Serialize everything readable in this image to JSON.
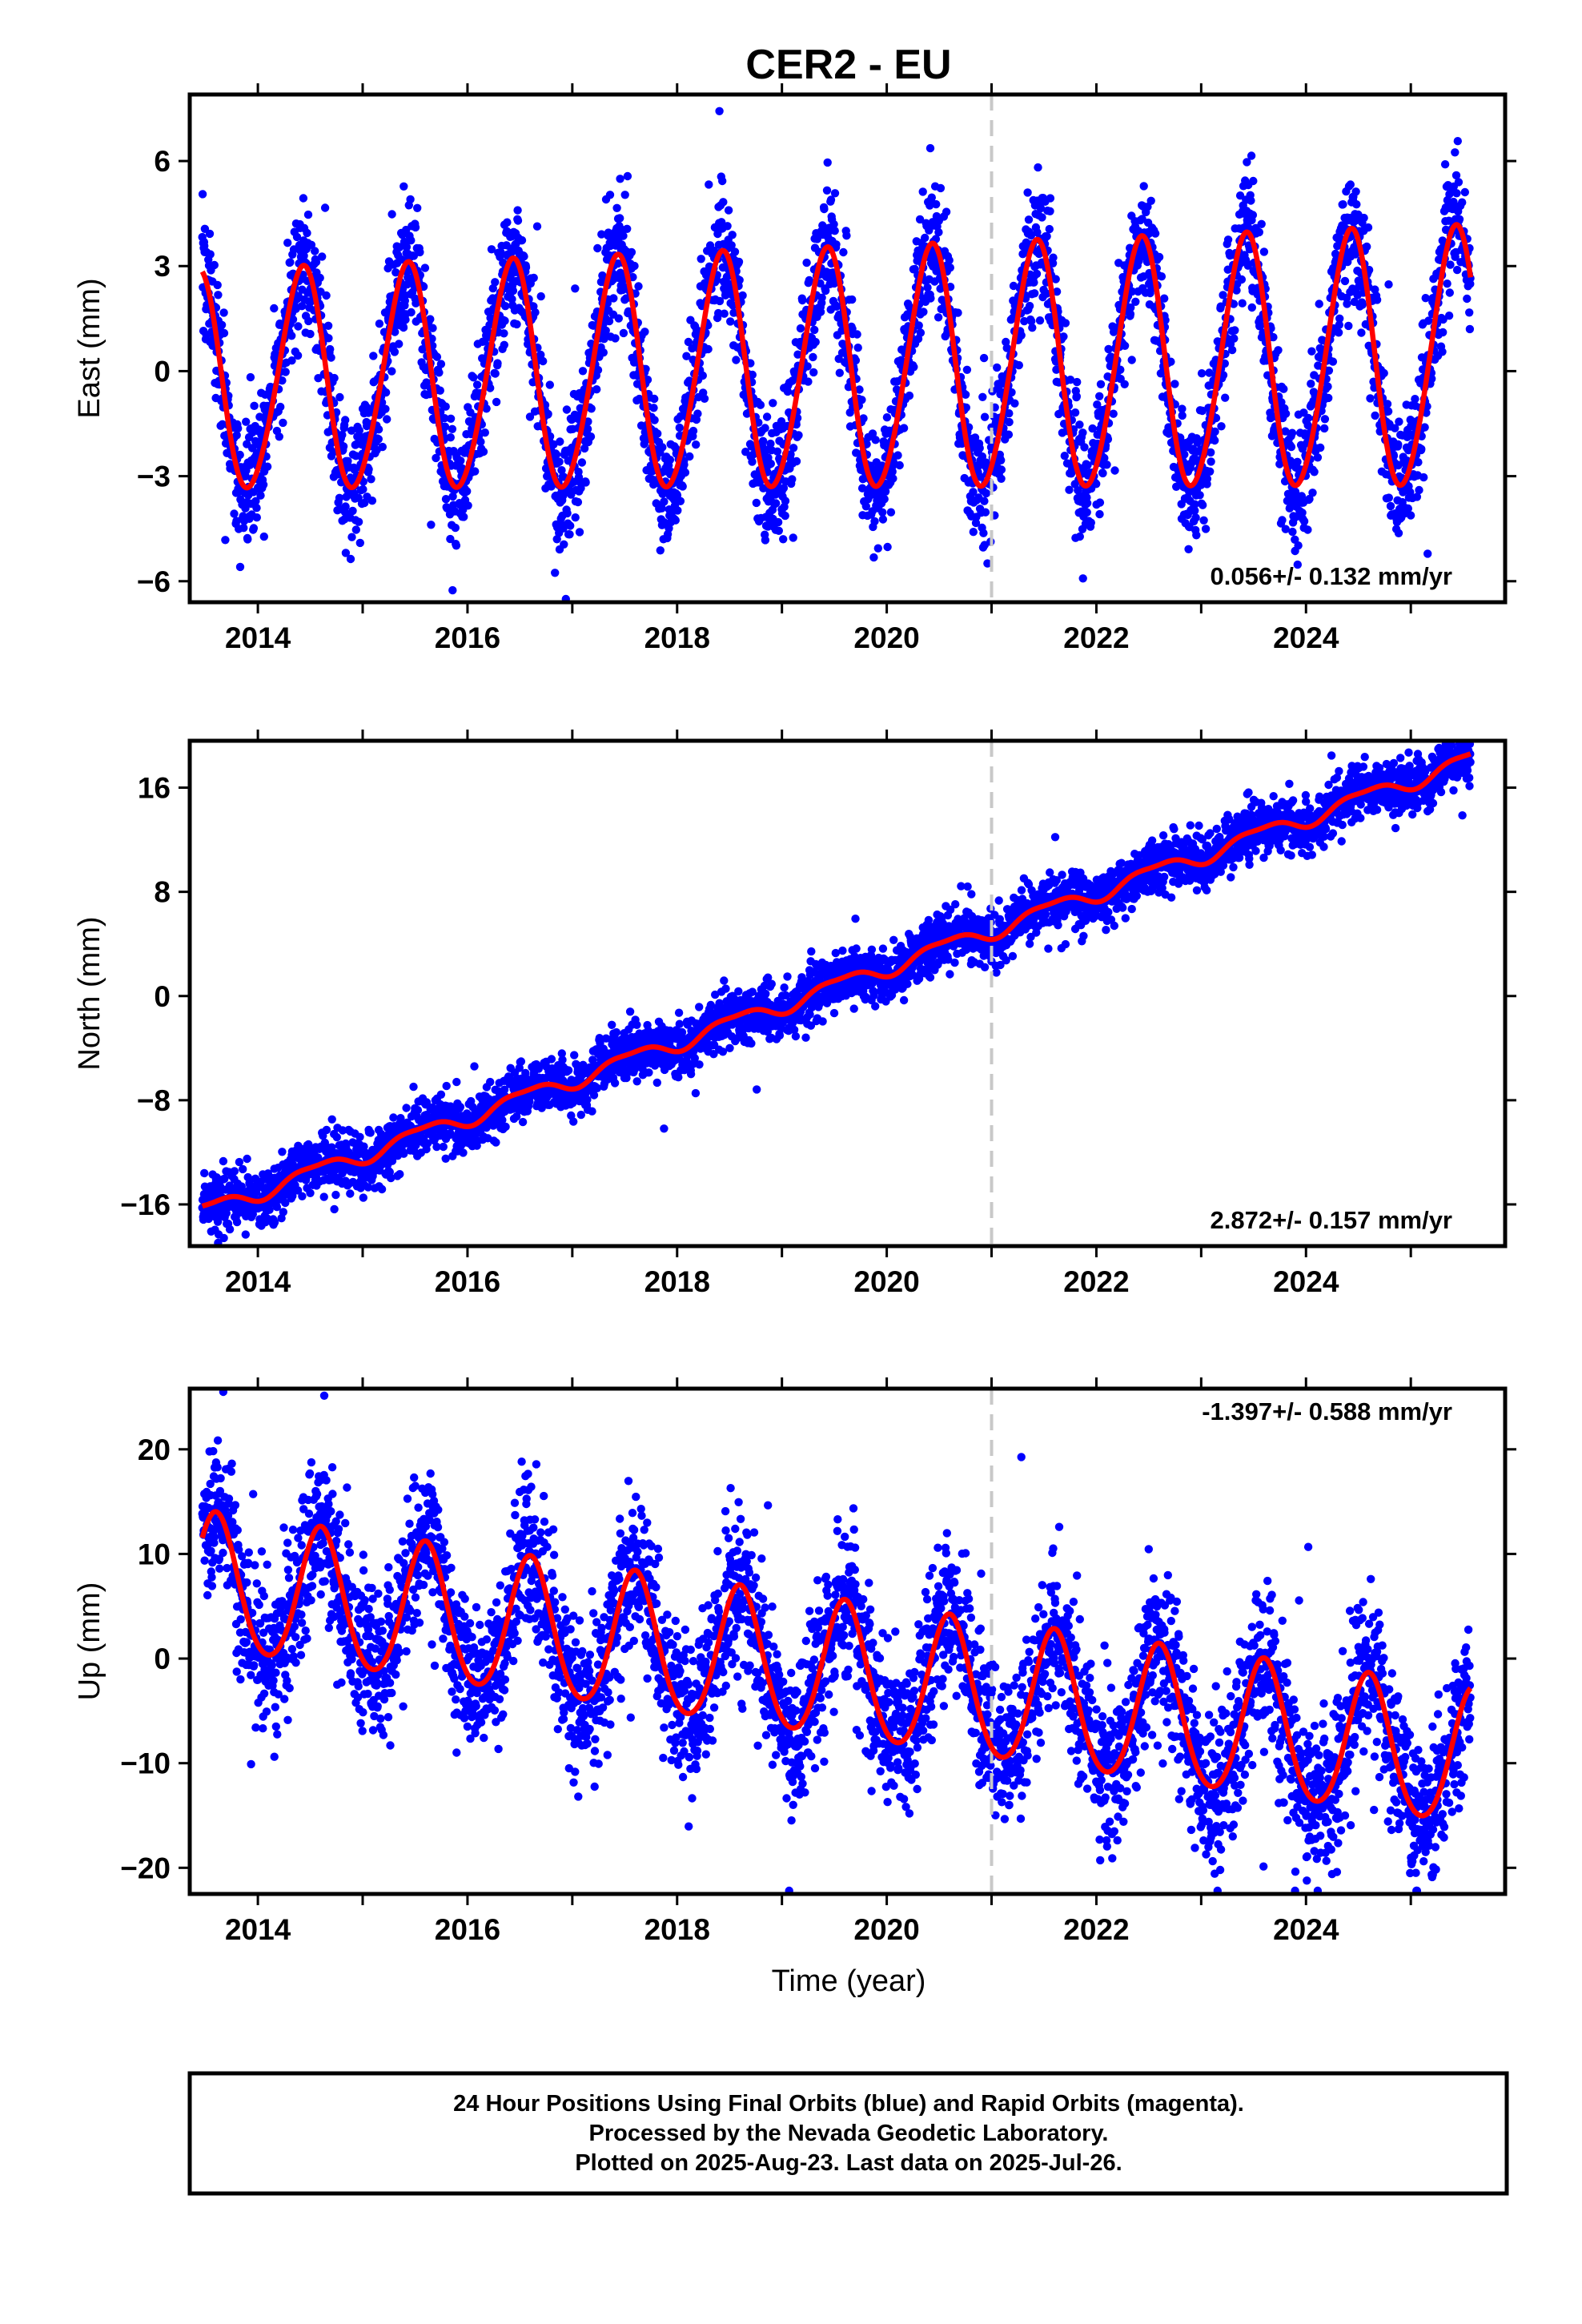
{
  "title": "CER2 - EU",
  "xlabel": "Time (year)",
  "footer": {
    "line1": "24 Hour Positions Using Final Orbits (blue) and Rapid Orbits (magenta).",
    "line2": "Processed by the Nevada Geodetic Laboratory.",
    "line3": "Plotted on 2025-Aug-23. Last data on 2025-Jul-26."
  },
  "colors": {
    "points": "#0000ff",
    "fit": "#ff0000",
    "marker_line": "#c8c8c8",
    "frame": "#000000"
  },
  "chart_data": [
    {
      "type": "scatter",
      "component": "east",
      "ylabel": "East (mm)",
      "xlim": [
        2013.35,
        2025.9
      ],
      "ylim": [
        -6.6,
        7.9
      ],
      "xticks": [
        2014,
        2016,
        2018,
        2020,
        2022,
        2024
      ],
      "yticks": [
        -6,
        -3,
        0,
        3,
        6
      ],
      "ytick_labels": [
        "−6",
        "−3",
        "0",
        "3",
        "6"
      ],
      "vertical_marker_x": 2021.0,
      "rate_label": "0.056+/- 0.132 mm/yr",
      "rate_position": "bottom-right",
      "data_span": [
        2013.47,
        2025.57
      ],
      "model": {
        "offset": 0.0,
        "rate": 0.056,
        "annual_amplitude": 3.1,
        "annual_amplitude_growth": 0.05,
        "annual_peak": 0.42,
        "semiannual_amplitude": 0.25,
        "semiannual_peak": 0.0
      },
      "daily_scatter_mm": 0.9,
      "series": [
        {
          "name": "Final Orbits (blue)",
          "style": "points"
        },
        {
          "name": "Fit",
          "style": "line"
        }
      ]
    },
    {
      "type": "scatter",
      "component": "north",
      "ylabel": "North (mm)",
      "xlim": [
        2013.35,
        2025.9
      ],
      "ylim": [
        -19.2,
        19.6
      ],
      "xticks": [
        2014,
        2016,
        2018,
        2020,
        2022,
        2024
      ],
      "yticks": [
        -16,
        -8,
        0,
        8,
        16
      ],
      "ytick_labels": [
        "−16",
        "−8",
        "0",
        "8",
        "16"
      ],
      "vertical_marker_x": 2021.0,
      "rate_label": "2.872+/- 0.157 mm/yr",
      "rate_position": "bottom-right",
      "data_span": [
        2013.47,
        2025.57
      ],
      "model": {
        "offset": 2.2,
        "rate": 2.872,
        "ref_year": 2020.0,
        "annual_amplitude": 0.6,
        "annual_amplitude_growth": 0.0,
        "annual_peak": 0.55,
        "semiannual_amplitude": 0.2,
        "semiannual_peak": 0.3
      },
      "daily_scatter_mm": 1.0,
      "series": [
        {
          "name": "Final Orbits (blue)",
          "style": "points"
        },
        {
          "name": "Fit",
          "style": "line"
        }
      ]
    },
    {
      "type": "scatter",
      "component": "up",
      "ylabel": "Up (mm)",
      "xlim": [
        2013.35,
        2025.9
      ],
      "ylim": [
        -22.5,
        25.8
      ],
      "xticks": [
        2014,
        2016,
        2018,
        2020,
        2022,
        2024
      ],
      "yticks": [
        -20,
        -10,
        0,
        10,
        20
      ],
      "ytick_labels": [
        "−20",
        "−10",
        "0",
        "10",
        "20"
      ],
      "vertical_marker_x": 2021.0,
      "rate_label": "-1.397+/- 0.588 mm/yr",
      "rate_position": "top-right",
      "data_span": [
        2013.47,
        2025.57
      ],
      "model": {
        "offset": -2.0,
        "rate": -1.397,
        "ref_year": 2020.0,
        "annual_amplitude": 6.5,
        "annual_amplitude_growth": 0.0,
        "annual_peak": 0.6,
        "semiannual_amplitude": 0.6,
        "semiannual_peak": 0.1
      },
      "daily_scatter_mm": 3.6,
      "series": [
        {
          "name": "Final Orbits (blue)",
          "style": "points"
        },
        {
          "name": "Fit",
          "style": "line"
        }
      ]
    }
  ]
}
